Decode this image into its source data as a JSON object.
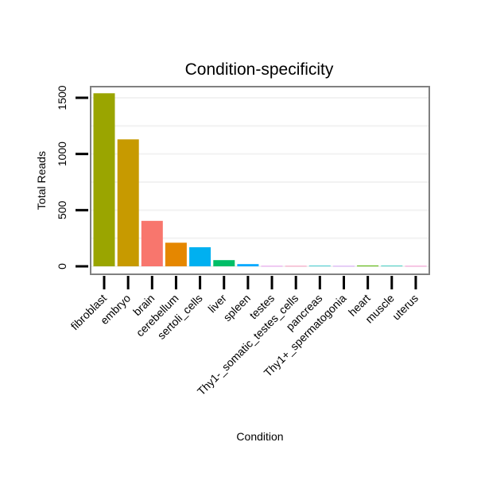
{
  "chart_data": {
    "type": "bar",
    "title": "Condition-specificity",
    "xlabel": "Condition",
    "ylabel": "Total Reads",
    "ylim": [
      -60,
      1630
    ],
    "yticks": [
      0,
      500,
      1000,
      1500
    ],
    "categories": [
      "fibroblast",
      "embryo",
      "brain",
      "cerebellum",
      "sertoli_cells",
      "liver",
      "spleen",
      "testes",
      "Thy1-_somatic_testes_cells",
      "pancreas",
      "Thy1+_spermatogonia",
      "heart",
      "muscle",
      "uterus"
    ],
    "values": [
      1540,
      1130,
      405,
      210,
      170,
      55,
      20,
      3,
      3,
      5,
      3,
      7,
      5,
      3
    ],
    "colors": [
      "#9aa500",
      "#c79a00",
      "#f8766d",
      "#e58700",
      "#00b0f0",
      "#00be67",
      "#00a9ff",
      "#e76bf3",
      "#ff67a4",
      "#00bfc4",
      "#c77cff",
      "#53b400",
      "#00c0af",
      "#ff61c3"
    ],
    "grid": true,
    "legend": "none"
  }
}
